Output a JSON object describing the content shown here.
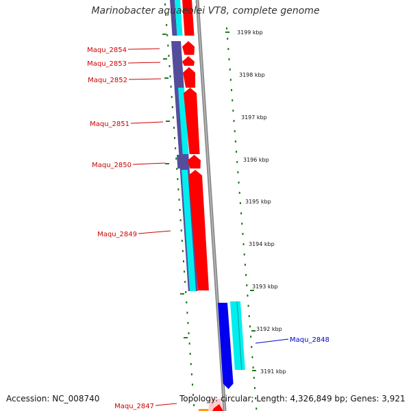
{
  "title": "Marinobacter aquaeolei VT8, complete genome",
  "accession_text": "Accession: NC_008740",
  "topology_text": "Topology: circular; Length: 4,326,849 bp; Genes: 3,921",
  "colors": {
    "reverse_cds": "#ff0000",
    "reverse_gene_block": "#544d9b",
    "forward_cds": "#0000ee",
    "forward_gene_block": "#00eeee",
    "feature_track": "#00eeee",
    "backbone": "#888888",
    "gc_ticks": "#1f7a1f",
    "reverse_label": "#cc0000",
    "forward_label": "#0000cc",
    "orange_feature": "#ff9900"
  },
  "kbp_labels": [
    "3199 kbp",
    "3198 kbp",
    "3197 kbp",
    "3196 kbp",
    "3195 kbp",
    "3194 kbp",
    "3193 kbp",
    "3192 kbp",
    "3191 kbp"
  ],
  "genes": [
    {
      "name": "Maqu_2854",
      "strand": "reverse"
    },
    {
      "name": "Maqu_2853",
      "strand": "reverse"
    },
    {
      "name": "Maqu_2852",
      "strand": "reverse"
    },
    {
      "name": "Maqu_2851",
      "strand": "reverse"
    },
    {
      "name": "Maqu_2850",
      "strand": "reverse"
    },
    {
      "name": "Maqu_2849",
      "strand": "reverse"
    },
    {
      "name": "Maqu_2848",
      "strand": "forward"
    },
    {
      "name": "Maqu_2847",
      "strand": "reverse"
    }
  ]
}
